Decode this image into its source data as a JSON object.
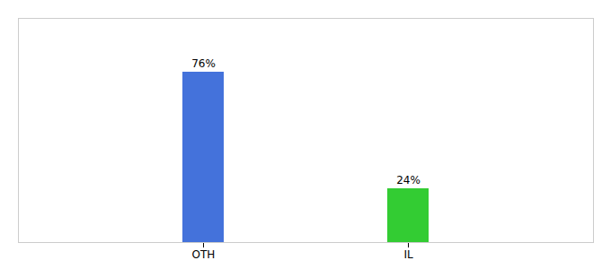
{
  "chart_data": {
    "type": "bar",
    "categories": [
      "OTH",
      "IL"
    ],
    "values": [
      76,
      24
    ],
    "value_labels": [
      "76%",
      "24%"
    ],
    "colors": [
      "#4472db",
      "#33cc33"
    ],
    "ylim": [
      0,
      100
    ],
    "data_labels": true,
    "tick_labels": "x"
  }
}
